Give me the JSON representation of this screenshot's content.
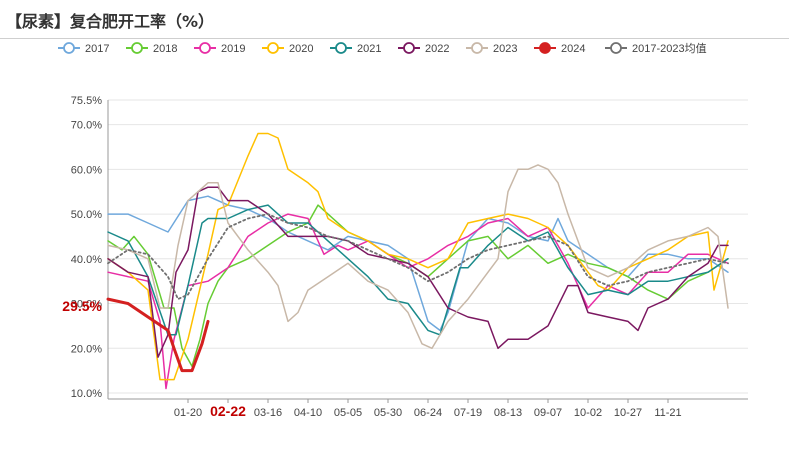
{
  "title": "【尿素】复合肥开工率（%）",
  "chart_data": {
    "type": "line",
    "y_unit": "%",
    "ylim": [
      10.0,
      75.5
    ],
    "y_ticks": [
      "75.5%",
      "70.0%",
      "60.0%",
      "50.0%",
      "40.0%",
      "30.0%",
      "20.0%",
      "10.0%"
    ],
    "y_tick_values": [
      75.5,
      70,
      60,
      50,
      40,
      30,
      20,
      10
    ],
    "x_ticks": [
      "01-20",
      "02-22",
      "03-16",
      "04-10",
      "05-05",
      "05-30",
      "06-24",
      "07-19",
      "08-13",
      "09-07",
      "10-02",
      "10-27",
      "11-21"
    ],
    "x_tick_positions": [
      4,
      6,
      8,
      10,
      12,
      14,
      16,
      18,
      20,
      22,
      24,
      26,
      28
    ],
    "highlight_x_tick": "02-22",
    "x_max": 32,
    "annotation": {
      "label": "29.5%",
      "value": 29.5
    },
    "series": [
      {
        "name": "2017",
        "color": "#6fa8dc",
        "dash": false,
        "width": 1.5,
        "points": [
          [
            0,
            50
          ],
          [
            1,
            50
          ],
          [
            2,
            48
          ],
          [
            3,
            46
          ],
          [
            4,
            53
          ],
          [
            5,
            54
          ],
          [
            6,
            52
          ],
          [
            7,
            51
          ],
          [
            8,
            49
          ],
          [
            9,
            46
          ],
          [
            10,
            44
          ],
          [
            11,
            42
          ],
          [
            12,
            45
          ],
          [
            13,
            44
          ],
          [
            14,
            43
          ],
          [
            15,
            40
          ],
          [
            16,
            26
          ],
          [
            16.6,
            24
          ],
          [
            17,
            28
          ],
          [
            18,
            44
          ],
          [
            19,
            49
          ],
          [
            20,
            48
          ],
          [
            21,
            45
          ],
          [
            22,
            44
          ],
          [
            22.5,
            49
          ],
          [
            23,
            44
          ],
          [
            24,
            41
          ],
          [
            25,
            38
          ],
          [
            26,
            36
          ],
          [
            27,
            41
          ],
          [
            28,
            41
          ],
          [
            29,
            40
          ],
          [
            30,
            40
          ],
          [
            31,
            37
          ]
        ]
      },
      {
        "name": "2018",
        "color": "#66cc33",
        "dash": false,
        "width": 1.5,
        "points": [
          [
            0,
            44
          ],
          [
            0.7,
            42
          ],
          [
            1.3,
            45
          ],
          [
            2,
            41
          ],
          [
            2.8,
            29
          ],
          [
            3.3,
            29
          ],
          [
            3.7,
            20
          ],
          [
            4.2,
            16
          ],
          [
            4.6,
            22
          ],
          [
            5,
            30
          ],
          [
            5.5,
            35
          ],
          [
            6,
            38
          ],
          [
            7,
            40
          ],
          [
            8,
            43
          ],
          [
            9,
            46
          ],
          [
            10,
            48
          ],
          [
            10.5,
            52
          ],
          [
            11,
            50
          ],
          [
            12,
            46
          ],
          [
            13,
            44
          ],
          [
            14,
            41
          ],
          [
            15,
            39
          ],
          [
            16,
            36
          ],
          [
            17,
            40
          ],
          [
            18,
            44
          ],
          [
            19,
            45
          ],
          [
            20,
            40
          ],
          [
            21,
            43
          ],
          [
            22,
            39
          ],
          [
            23,
            41
          ],
          [
            24,
            39
          ],
          [
            25,
            38
          ],
          [
            26,
            36
          ],
          [
            27,
            33
          ],
          [
            28,
            31
          ],
          [
            29,
            35
          ],
          [
            30,
            37
          ],
          [
            31,
            40
          ]
        ]
      },
      {
        "name": "2019",
        "color": "#e82ea5",
        "dash": false,
        "width": 1.5,
        "points": [
          [
            0,
            37
          ],
          [
            1,
            36
          ],
          [
            2,
            35
          ],
          [
            2.6,
            26
          ],
          [
            2.9,
            11
          ],
          [
            3.3,
            22
          ],
          [
            4,
            34
          ],
          [
            5,
            35
          ],
          [
            6,
            38
          ],
          [
            7,
            45
          ],
          [
            8,
            48
          ],
          [
            9,
            50
          ],
          [
            10,
            49
          ],
          [
            10.8,
            41
          ],
          [
            11.5,
            43
          ],
          [
            12,
            42
          ],
          [
            13,
            44
          ],
          [
            14,
            41
          ],
          [
            15,
            38
          ],
          [
            16,
            40
          ],
          [
            17,
            43
          ],
          [
            18,
            45
          ],
          [
            19,
            48
          ],
          [
            20,
            49
          ],
          [
            21,
            45
          ],
          [
            22,
            47
          ],
          [
            23,
            39
          ],
          [
            24,
            29
          ],
          [
            25,
            34
          ],
          [
            26,
            32
          ],
          [
            27,
            37
          ],
          [
            28,
            37
          ],
          [
            29,
            41
          ],
          [
            30,
            41
          ],
          [
            31,
            39
          ]
        ]
      },
      {
        "name": "2020",
        "color": "#ffc000",
        "dash": false,
        "width": 1.5,
        "points": [
          [
            0,
            40
          ],
          [
            1,
            37
          ],
          [
            2,
            33
          ],
          [
            2.6,
            13
          ],
          [
            3.3,
            13
          ],
          [
            4,
            22
          ],
          [
            5,
            41
          ],
          [
            5.5,
            51
          ],
          [
            6,
            52
          ],
          [
            7,
            63
          ],
          [
            7.5,
            68
          ],
          [
            8,
            68
          ],
          [
            8.5,
            67
          ],
          [
            9,
            60
          ],
          [
            10,
            57
          ],
          [
            10.5,
            55
          ],
          [
            11,
            49
          ],
          [
            12,
            46
          ],
          [
            13,
            44
          ],
          [
            14,
            41
          ],
          [
            15,
            40
          ],
          [
            16,
            38
          ],
          [
            17,
            40
          ],
          [
            18,
            48
          ],
          [
            19,
            49
          ],
          [
            20,
            50
          ],
          [
            21,
            49
          ],
          [
            22,
            47
          ],
          [
            23,
            43
          ],
          [
            24,
            37
          ],
          [
            24.5,
            34
          ],
          [
            25,
            33
          ],
          [
            26,
            38
          ],
          [
            27,
            40
          ],
          [
            28,
            42
          ],
          [
            29,
            45
          ],
          [
            30,
            46
          ],
          [
            30.3,
            33
          ],
          [
            31,
            44
          ]
        ]
      },
      {
        "name": "2021",
        "color": "#1a8a8a",
        "dash": false,
        "width": 1.5,
        "points": [
          [
            0,
            46
          ],
          [
            1,
            44
          ],
          [
            2,
            36
          ],
          [
            3,
            23
          ],
          [
            3.4,
            23
          ],
          [
            4,
            34
          ],
          [
            4.7,
            48
          ],
          [
            5,
            49
          ],
          [
            6,
            49
          ],
          [
            7,
            51
          ],
          [
            8,
            52
          ],
          [
            9,
            48
          ],
          [
            10,
            48
          ],
          [
            11,
            44
          ],
          [
            12,
            40
          ],
          [
            13,
            36
          ],
          [
            14,
            31
          ],
          [
            15,
            30
          ],
          [
            16,
            24
          ],
          [
            16.6,
            23
          ],
          [
            17,
            29
          ],
          [
            17.6,
            38
          ],
          [
            18,
            38
          ],
          [
            19,
            43
          ],
          [
            20,
            47
          ],
          [
            21,
            44
          ],
          [
            22,
            46
          ],
          [
            23,
            38
          ],
          [
            24,
            32
          ],
          [
            25,
            33
          ],
          [
            26,
            32
          ],
          [
            27,
            35
          ],
          [
            28,
            35
          ],
          [
            29,
            36
          ],
          [
            30,
            37
          ],
          [
            31,
            40
          ]
        ]
      },
      {
        "name": "2022",
        "color": "#7b1860",
        "dash": false,
        "width": 1.5,
        "points": [
          [
            0,
            40
          ],
          [
            1,
            37
          ],
          [
            2,
            36
          ],
          [
            2.5,
            18
          ],
          [
            3,
            23
          ],
          [
            3.4,
            37
          ],
          [
            4,
            42
          ],
          [
            4.5,
            55
          ],
          [
            5,
            56
          ],
          [
            5.5,
            56
          ],
          [
            6,
            53
          ],
          [
            7,
            53
          ],
          [
            8,
            50
          ],
          [
            9,
            45
          ],
          [
            10,
            45
          ],
          [
            11,
            45
          ],
          [
            12,
            44
          ],
          [
            13,
            41
          ],
          [
            14,
            40
          ],
          [
            15,
            39
          ],
          [
            16,
            36
          ],
          [
            17,
            29
          ],
          [
            18,
            27
          ],
          [
            19,
            26
          ],
          [
            19.5,
            20
          ],
          [
            20,
            22
          ],
          [
            21,
            22
          ],
          [
            22,
            25
          ],
          [
            23,
            34
          ],
          [
            23.5,
            34
          ],
          [
            24,
            28
          ],
          [
            25,
            27
          ],
          [
            26,
            26
          ],
          [
            26.5,
            24
          ],
          [
            27,
            29
          ],
          [
            28,
            31
          ],
          [
            29,
            36
          ],
          [
            30,
            39
          ],
          [
            30.5,
            43
          ],
          [
            31,
            43
          ]
        ]
      },
      {
        "name": "2023",
        "color": "#c8b8a8",
        "dash": false,
        "width": 1.5,
        "points": [
          [
            0,
            43
          ],
          [
            1,
            42
          ],
          [
            2,
            40
          ],
          [
            2.6,
            29
          ],
          [
            3,
            29
          ],
          [
            3.5,
            43
          ],
          [
            4,
            53
          ],
          [
            5,
            57
          ],
          [
            5.5,
            57
          ],
          [
            6,
            48
          ],
          [
            7,
            42
          ],
          [
            8,
            37
          ],
          [
            8.5,
            34
          ],
          [
            9,
            26
          ],
          [
            9.5,
            28
          ],
          [
            10,
            33
          ],
          [
            11,
            36
          ],
          [
            12,
            39
          ],
          [
            13,
            35
          ],
          [
            14,
            33
          ],
          [
            15,
            28
          ],
          [
            15.7,
            21
          ],
          [
            16.2,
            20
          ],
          [
            17,
            26
          ],
          [
            18,
            31
          ],
          [
            19,
            37
          ],
          [
            19.5,
            40
          ],
          [
            20,
            55
          ],
          [
            20.5,
            60
          ],
          [
            21,
            60
          ],
          [
            21.5,
            61
          ],
          [
            22,
            60
          ],
          [
            22.5,
            57
          ],
          [
            23,
            50
          ],
          [
            24,
            38
          ],
          [
            25,
            36
          ],
          [
            26,
            38
          ],
          [
            27,
            42
          ],
          [
            28,
            44
          ],
          [
            29,
            45
          ],
          [
            30,
            47
          ],
          [
            30.5,
            45
          ],
          [
            31,
            29
          ]
        ]
      },
      {
        "name": "2024",
        "color": "#d42020",
        "dash": false,
        "width": 3,
        "points": [
          [
            0,
            31
          ],
          [
            1,
            30
          ],
          [
            2,
            27
          ],
          [
            3,
            24
          ],
          [
            3.3,
            20
          ],
          [
            3.7,
            15
          ],
          [
            4.2,
            15
          ],
          [
            4.7,
            21
          ],
          [
            5,
            26
          ]
        ]
      },
      {
        "name": "2017-2023均值",
        "color": "#707070",
        "dash": true,
        "width": 1.8,
        "points": [
          [
            0,
            39
          ],
          [
            1,
            42
          ],
          [
            2,
            41
          ],
          [
            3,
            36
          ],
          [
            3.5,
            31
          ],
          [
            4,
            32
          ],
          [
            5,
            40
          ],
          [
            6,
            47
          ],
          [
            7,
            49
          ],
          [
            8,
            50
          ],
          [
            9,
            48
          ],
          [
            10,
            47
          ],
          [
            11,
            45
          ],
          [
            12,
            44
          ],
          [
            13,
            42
          ],
          [
            14,
            40
          ],
          [
            15,
            38
          ],
          [
            16,
            35
          ],
          [
            17,
            37
          ],
          [
            18,
            40
          ],
          [
            19,
            42
          ],
          [
            20,
            43
          ],
          [
            21,
            44
          ],
          [
            22,
            45
          ],
          [
            23,
            43
          ],
          [
            24,
            36
          ],
          [
            25,
            34
          ],
          [
            26,
            35
          ],
          [
            27,
            37
          ],
          [
            28,
            38
          ],
          [
            29,
            39
          ],
          [
            30,
            40
          ],
          [
            31,
            39
          ]
        ]
      }
    ]
  }
}
